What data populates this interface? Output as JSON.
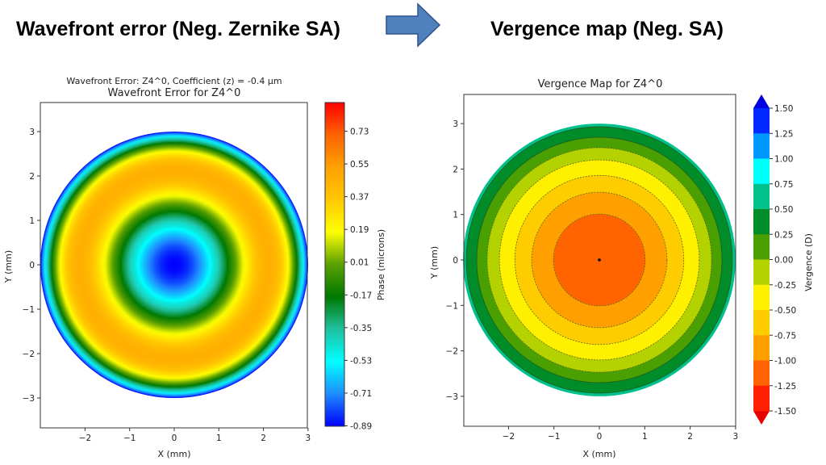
{
  "slide": {
    "left_heading": "Wavefront error (Neg. Zernike SA)",
    "right_heading": "Vergence map (Neg. SA)",
    "arrow_icon": "right-arrow",
    "arrow_color": "#4F81BD"
  },
  "chart_data": [
    {
      "type": "heatmap",
      "suptitle": "Wavefront Error: Z4^0, Coefficient (z) = -0.4 µm",
      "title": "Wavefront Error for Z4^0",
      "xlabel": "X (mm)",
      "ylabel": "Y (mm)",
      "xticks": [
        "−2",
        "−1",
        "0",
        "1",
        "2",
        "3"
      ],
      "xtick_values": [
        -2,
        -1,
        0,
        1,
        2,
        3
      ],
      "yticks": [
        "−3",
        "−2",
        "−1",
        "0",
        "1",
        "2",
        "3"
      ],
      "ytick_values": [
        -3,
        -2,
        -1,
        0,
        1,
        2,
        3
      ],
      "xlim": [
        -3,
        3
      ],
      "ylim": [
        -3.65,
        3.65
      ],
      "pupil_radius_mm": 3,
      "profile": "radial, center -0.89 µm (blue), ring minimum near r=0.6 mm cyan, maximum ~+0.45 µm (orange) near r=2.1 mm, edge -0.89 µm (blue)",
      "colorbar": {
        "label": "Phase (microns)",
        "ticks": [
          "0.73",
          "0.55",
          "0.37",
          "0.19",
          "0.01",
          "-0.17",
          "-0.35",
          "-0.53",
          "-0.71",
          "-0.89"
        ],
        "tick_values": [
          0.73,
          0.55,
          0.37,
          0.19,
          0.01,
          -0.17,
          -0.35,
          -0.53,
          -0.71,
          -0.89
        ],
        "range": [
          -0.89,
          0.89
        ],
        "colors": [
          "#0000ff",
          "#1e8cff",
          "#00ffff",
          "#20c0a0",
          "#007800",
          "#5aa000",
          "#ffff00",
          "#ffc800",
          "#ffa000",
          "#ff6400",
          "#ff0000"
        ]
      }
    },
    {
      "type": "contourf",
      "title": "Vergence Map for Z4^0",
      "xlabel": "X (mm)",
      "ylabel": "Y (mm)",
      "xticks": [
        "−2",
        "−1",
        "0",
        "1",
        "2",
        "3"
      ],
      "xtick_values": [
        -2,
        -1,
        0,
        1,
        2,
        3
      ],
      "yticks": [
        "−3",
        "−2",
        "−1",
        "0",
        "1",
        "2",
        "3"
      ],
      "ytick_values": [
        -3,
        -2,
        -1,
        0,
        1,
        2,
        3
      ],
      "xlim": [
        -2.96,
        3
      ],
      "ylim": [
        -3.7,
        3.6
      ],
      "rings": [
        {
          "outer_radius_mm": 3.0,
          "range": [
            0.5,
            0.75
          ],
          "color": "#00c08c"
        },
        {
          "outer_radius_mm": 2.93,
          "range": [
            0.25,
            0.5
          ],
          "color": "#008c28"
        },
        {
          "outer_radius_mm": 2.7,
          "range": [
            0.0,
            0.25
          ],
          "color": "#4aa000"
        },
        {
          "outer_radius_mm": 2.47,
          "range": [
            -0.25,
            0.0
          ],
          "color": "#b4d200"
        },
        {
          "outer_radius_mm": 2.2,
          "range": [
            -0.5,
            -0.25
          ],
          "color": "#fff000"
        },
        {
          "outer_radius_mm": 1.86,
          "range": [
            -0.75,
            -0.5
          ],
          "color": "#ffcc00"
        },
        {
          "outer_radius_mm": 1.49,
          "range": [
            -1.0,
            -0.75
          ],
          "color": "#ffa000"
        },
        {
          "outer_radius_mm": 1.01,
          "range": [
            -1.25,
            -1.0
          ],
          "color": "#ff6400"
        }
      ],
      "colorbar": {
        "label": "Vergence (D)",
        "ticks": [
          "1.50",
          "1.25",
          "1.00",
          "0.75",
          "0.50",
          "0.25",
          "0.00",
          "-0.25",
          "-0.50",
          "-0.75",
          "-1.00",
          "-1.25",
          "-1.50"
        ],
        "segment_colors": [
          "#0028ff",
          "#0096ff",
          "#00ffff",
          "#00c08c",
          "#008c28",
          "#4aa000",
          "#b4d200",
          "#fff000",
          "#ffcc00",
          "#ffa000",
          "#ff6400",
          "#ff1e00"
        ],
        "extend": "both",
        "over_color": "#0000e0",
        "under_color": "#e60000"
      }
    }
  ]
}
